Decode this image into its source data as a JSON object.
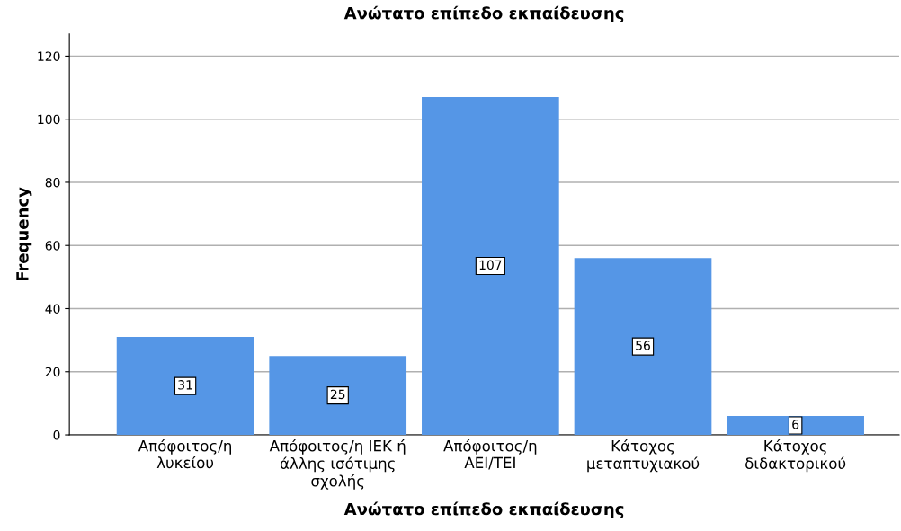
{
  "chart_data": {
    "type": "bar",
    "title": "Ανώτατο επίπεδο εκπαίδευσης",
    "xlabel": "Ανώτατο επίπεδο εκπαίδευσης",
    "ylabel": "Frequency",
    "categories": [
      "Απόφοιτος/η\nλυκείου",
      "Απόφοιτος/η ΙΕΚ ή\nάλλης ισότιμης\nσχολής",
      "Απόφοιτος/η\nΑΕΙ/ΤΕΙ",
      "Κάτοχος\nμεταπτυχιακού",
      "Κάτοχος\nδιδακτορικού"
    ],
    "values": [
      31,
      25,
      107,
      56,
      6
    ],
    "color": "#5596e6",
    "ylim": [
      0,
      127
    ],
    "yticks": [
      0,
      20,
      40,
      60,
      80,
      100,
      120
    ],
    "grid": "y",
    "data_labels": true
  }
}
